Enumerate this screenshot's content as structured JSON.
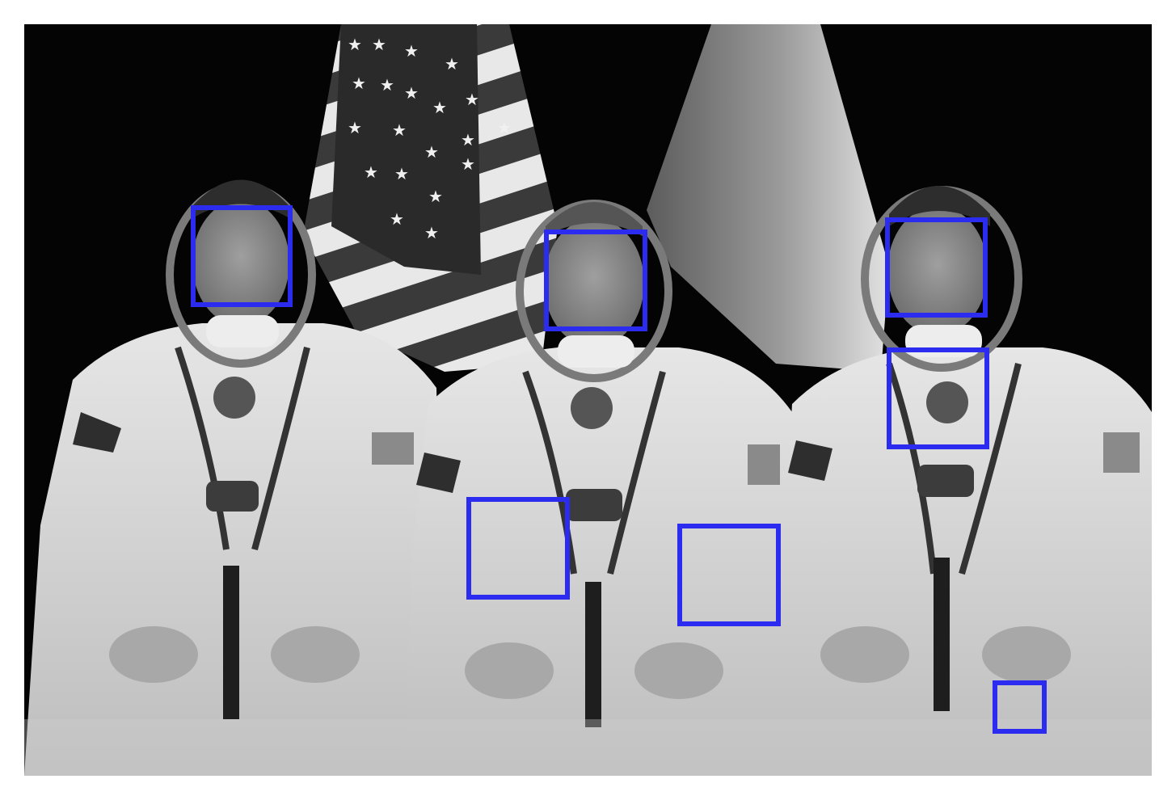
{
  "image": {
    "subject": "three-crew-portrait",
    "palette": "grayscale",
    "box_color": "#2b2cf0"
  },
  "detections": [
    {
      "id": 1,
      "kind": "face"
    },
    {
      "id": 2,
      "kind": "face"
    },
    {
      "id": 3,
      "kind": "face"
    },
    {
      "id": 4,
      "kind": "detection"
    },
    {
      "id": 5,
      "kind": "detection"
    },
    {
      "id": 6,
      "kind": "detection"
    },
    {
      "id": 7,
      "kind": "detection"
    }
  ]
}
